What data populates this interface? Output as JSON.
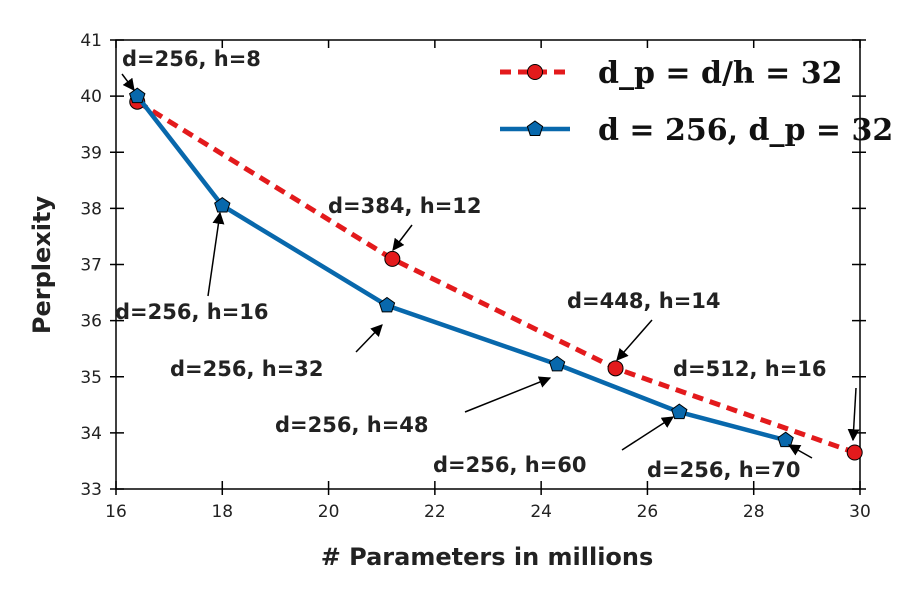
{
  "chart_data": {
    "type": "line",
    "xlabel": "# Parameters in millions",
    "ylabel": "Perplexity",
    "xlim": [
      16,
      30
    ],
    "ylim": [
      33,
      41
    ],
    "xticks": [
      "16",
      "18",
      "20",
      "22",
      "24",
      "26",
      "28",
      "30"
    ],
    "yticks": [
      "33",
      "34",
      "35",
      "36",
      "37",
      "38",
      "39",
      "40",
      "41"
    ],
    "grid": false,
    "legend_position": "top-right",
    "series": [
      {
        "name": "d_p = d/h = 32",
        "color": "#e31a1c",
        "line_style": "dashed",
        "marker": "circle",
        "x": [
          16.4,
          21.2,
          25.4,
          29.9
        ],
        "y": [
          39.9,
          37.1,
          35.15,
          33.65
        ],
        "labels": [
          "d=256, h=8",
          "d=384, h=12",
          "d=448, h=14",
          "d=512, h=16"
        ]
      },
      {
        "name": "d = 256, d_p = 32",
        "color": "#0868ac",
        "line_style": "solid",
        "marker": "pentagon",
        "x": [
          16.4,
          18.0,
          21.1,
          24.3,
          26.6,
          28.6
        ],
        "y": [
          40.0,
          38.05,
          36.27,
          35.22,
          34.37,
          33.87
        ],
        "labels": [
          "d=256, h=8",
          "d=256, h=16",
          "d=256, h=32",
          "d=256, h=48",
          "d=256, h=60",
          "d=256, h=70"
        ]
      }
    ],
    "annotations": [
      {
        "text": "d=256, h=8",
        "x": 16.4,
        "y": 40.0
      },
      {
        "text": "d=256, h=16",
        "x": 18.0,
        "y": 38.05
      },
      {
        "text": "d=384, h=12",
        "x": 21.2,
        "y": 37.1
      },
      {
        "text": "d=256, h=32",
        "x": 21.1,
        "y": 36.27
      },
      {
        "text": "d=448, h=14",
        "x": 25.4,
        "y": 35.15
      },
      {
        "text": "d=256, h=48",
        "x": 24.3,
        "y": 35.22
      },
      {
        "text": "d=512, h=16",
        "x": 29.9,
        "y": 33.65
      },
      {
        "text": "d=256, h=60",
        "x": 26.6,
        "y": 34.37
      },
      {
        "text": "d=256, h=70",
        "x": 28.6,
        "y": 33.87
      }
    ]
  }
}
